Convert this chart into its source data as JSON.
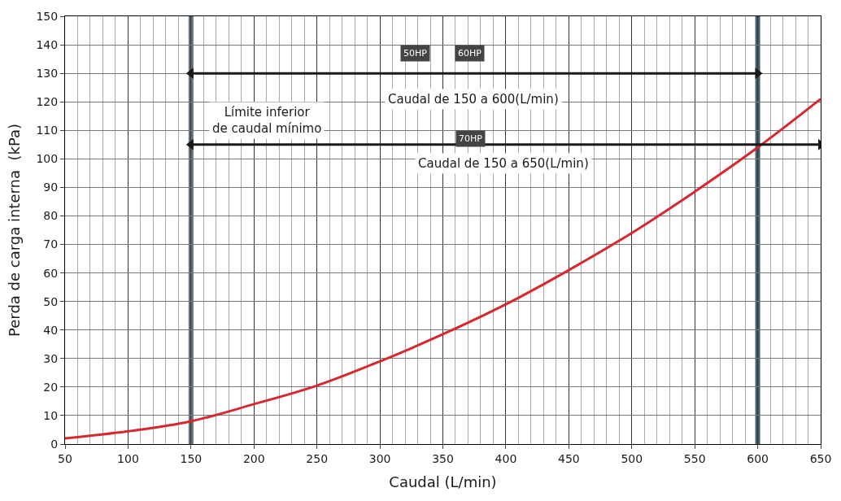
{
  "chart_data": {
    "type": "line",
    "xlabel": "Caudal (L/min)",
    "ylabel": "Perda de carga interna  (kPa)",
    "x": [
      50,
      100,
      150,
      200,
      250,
      300,
      350,
      400,
      450,
      500,
      550,
      600,
      650
    ],
    "series": [
      {
        "color": "#d7282f",
        "values": [
          2,
          4.5,
          8,
          14,
          20.5,
          29,
          38.5,
          49,
          61,
          74,
          88.5,
          104,
          121
        ]
      },
      {
        "type": "line",
        "color": "#1a1a1a",
        "x": [
          150,
          600
        ],
        "values": [
          130,
          130
        ],
        "marker": "triangle"
      },
      {
        "type": "line",
        "color": "#1a1a1a",
        "x": [
          150,
          650
        ],
        "values": [
          105,
          105
        ],
        "marker": "triangle"
      }
    ],
    "xlim": [
      50,
      650
    ],
    "xticks": [
      50,
      100,
      150,
      200,
      250,
      300,
      350,
      400,
      450,
      500,
      550,
      600,
      650
    ],
    "ylim": [
      0,
      150
    ],
    "yticks": [
      0,
      10,
      20,
      30,
      40,
      50,
      60,
      70,
      80,
      90,
      100,
      110,
      120,
      130,
      140,
      150
    ],
    "grid": true,
    "marker": "none",
    "ref_lines": [
      {
        "axis": "x",
        "value": 150,
        "color": "#5f7480"
      },
      {
        "axis": "x",
        "value": 600,
        "color": "#4a5f6c"
      }
    ],
    "annotations": [
      "50HP",
      "60HP",
      "70HP",
      "Límite inferior\nde caudal mínimo",
      "Caudal de 150 a 600(L/min)",
      "Caudal de 150 a 650(L/min)"
    ]
  }
}
